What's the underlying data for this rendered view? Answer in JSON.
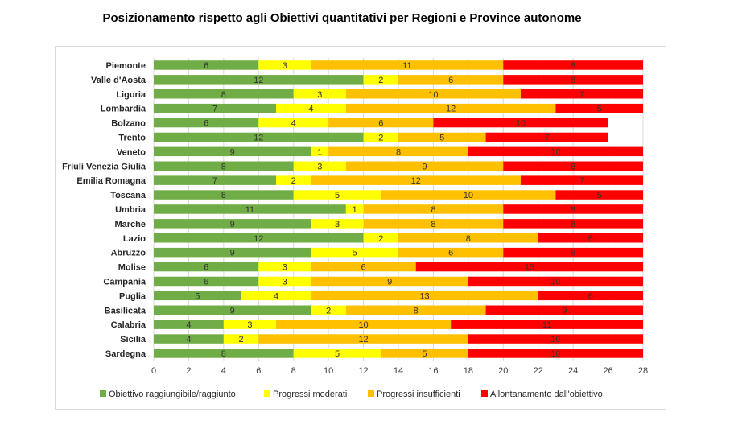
{
  "chart_data": {
    "type": "bar",
    "orientation": "horizontal",
    "stacked": true,
    "title": "Posizionamento rispetto agli Obiettivi quantitativi per Regioni e Province autonome",
    "categories": [
      "Piemonte",
      "Valle d'Aosta",
      "Liguria",
      "Lombardia",
      "Bolzano",
      "Trento",
      "Veneto",
      "Friuli Venezia Giulia",
      "Emilia Romagna",
      "Toscana",
      "Umbria",
      "Marche",
      "Lazio",
      "Abruzzo",
      "Molise",
      "Campania",
      "Puglia",
      "Basilicata",
      "Calabria",
      "Sicilia",
      "Sardegna"
    ],
    "series": [
      {
        "name": "Obiettivo raggiungibile/raggiunto",
        "color": "#70ad47",
        "values": [
          6,
          12,
          8,
          7,
          6,
          12,
          9,
          8,
          7,
          8,
          11,
          9,
          12,
          9,
          6,
          6,
          5,
          9,
          4,
          4,
          8
        ]
      },
      {
        "name": "Progressi moderati",
        "color": "#ffff00",
        "values": [
          3,
          2,
          3,
          4,
          4,
          2,
          1,
          3,
          2,
          5,
          1,
          3,
          2,
          5,
          3,
          3,
          4,
          2,
          3,
          2,
          5
        ]
      },
      {
        "name": "Progressi insufficienti",
        "color": "#ffc000",
        "values": [
          11,
          6,
          10,
          12,
          6,
          5,
          8,
          9,
          12,
          10,
          8,
          8,
          8,
          6,
          6,
          9,
          13,
          8,
          10,
          12,
          5
        ]
      },
      {
        "name": "Allontanamento dall'obiettivo",
        "color": "#ff0000",
        "values": [
          8,
          8,
          7,
          5,
          10,
          7,
          10,
          8,
          7,
          5,
          8,
          8,
          6,
          8,
          13,
          10,
          6,
          9,
          11,
          10,
          10
        ]
      }
    ],
    "xlim": [
      0,
      28
    ],
    "xticks": [
      "0",
      "2",
      "4",
      "6",
      "8",
      "10",
      "12",
      "14",
      "16",
      "18",
      "20",
      "22",
      "24",
      "26",
      "28"
    ],
    "grid": true,
    "legend": "bottom"
  }
}
